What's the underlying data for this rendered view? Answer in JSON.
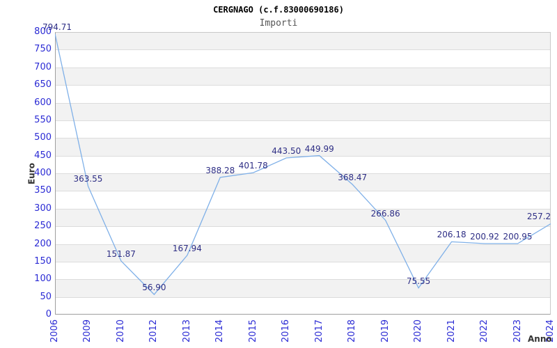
{
  "chart_data": {
    "type": "line",
    "title": "CERGNAGO (c.f.83000690186)",
    "subtitle": "Importi",
    "xlabel": "Anno",
    "ylabel": "Euro",
    "categories": [
      "2006",
      "2009",
      "2010",
      "2012",
      "2013",
      "2014",
      "2015",
      "2016",
      "2017",
      "2018",
      "2019",
      "2020",
      "2021",
      "2022",
      "2023",
      "2024"
    ],
    "series": [
      {
        "name": "Importi",
        "values": [
          794.71,
          363.55,
          151.87,
          56.9,
          167.94,
          388.28,
          401.78,
          443.5,
          449.99,
          368.47,
          266.86,
          75.55,
          206.18,
          200.92,
          200.95,
          257.2
        ],
        "point_labels": [
          "794.71",
          "363.55",
          "151.87",
          "56.90",
          "167.94",
          "388.28",
          "401.78",
          "443.50",
          "449.99",
          "368.47",
          "266.86",
          "75.55",
          "206.18",
          "200.92",
          "200.95",
          "257.2"
        ]
      }
    ],
    "ylim": [
      0,
      800
    ],
    "ytick_step": 50,
    "yticks": [
      0,
      50,
      100,
      150,
      200,
      250,
      300,
      350,
      400,
      450,
      500,
      550,
      600,
      650,
      700,
      750,
      800
    ],
    "grid": true,
    "legend": "none",
    "background_bands": "alternating white/gray horizontal stripes every 50 units, gray on 50-100,150-200,...,750-800",
    "colors": {
      "line": "#7fb0e8",
      "tick_label": "#2a2ad4",
      "point_label": "#2e2e85",
      "band": "#f2f2f2",
      "gridline": "#dcdcdc",
      "title": "#000000",
      "subtitle": "#555555",
      "axis_title": "#333333"
    }
  }
}
